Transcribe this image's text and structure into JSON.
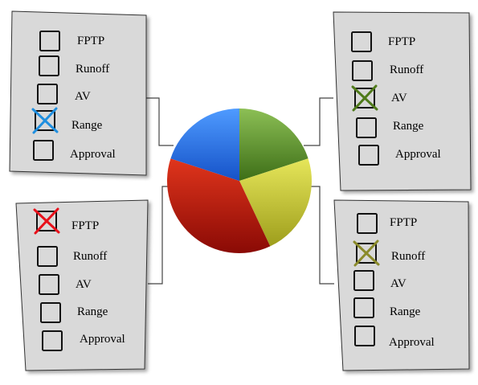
{
  "ballots": [
    {
      "id": "top-left",
      "slice_color": "#1f78e6",
      "mark_color": "#1f8fe0",
      "options": [
        {
          "label": "FPTP",
          "checked": false
        },
        {
          "label": "Runoff",
          "checked": false
        },
        {
          "label": "AV",
          "checked": false
        },
        {
          "label": "Range",
          "checked": true
        },
        {
          "label": "Approval",
          "checked": false
        }
      ]
    },
    {
      "id": "top-right",
      "slice_color": "#5f9a30",
      "mark_color": "#4f7a1a",
      "options": [
        {
          "label": "FPTP",
          "checked": false
        },
        {
          "label": "Runoff",
          "checked": false
        },
        {
          "label": "AV",
          "checked": true
        },
        {
          "label": "Range",
          "checked": false
        },
        {
          "label": "Approval",
          "checked": false
        }
      ]
    },
    {
      "id": "bottom-left",
      "slice_color": "#c4170c",
      "mark_color": "#e8101a",
      "options": [
        {
          "label": "FPTP",
          "checked": true
        },
        {
          "label": "Runoff",
          "checked": false
        },
        {
          "label": "AV",
          "checked": false
        },
        {
          "label": "Range",
          "checked": false
        },
        {
          "label": "Approval",
          "checked": false
        }
      ]
    },
    {
      "id": "bottom-right",
      "slice_color": "#c9c93a",
      "mark_color": "#8a8a2a",
      "options": [
        {
          "label": "FPTP",
          "checked": false
        },
        {
          "label": "Runoff",
          "checked": true
        },
        {
          "label": "AV",
          "checked": false
        },
        {
          "label": "Range",
          "checked": false
        },
        {
          "label": "Approval",
          "checked": false
        }
      ]
    }
  ],
  "pie": {
    "slices": [
      {
        "ballot": "top-right",
        "share": 0.2
      },
      {
        "ballot": "bottom-right",
        "share": 0.23
      },
      {
        "ballot": "bottom-left",
        "share": 0.37
      },
      {
        "ballot": "top-left",
        "share": 0.2
      }
    ]
  }
}
